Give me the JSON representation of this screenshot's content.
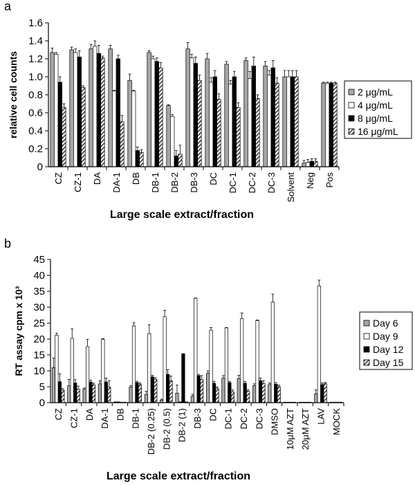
{
  "chart_data": [
    {
      "panel": "a",
      "type": "bar",
      "xlabel": "Large scale extract/fraction",
      "ylabel": "relative cell counts",
      "ylim": [
        0,
        1.6
      ],
      "yticks": [
        "0",
        "0.2",
        "0.4",
        "0.6",
        "0.8",
        "1.0",
        "1.2",
        "1.4",
        "1.6"
      ],
      "categories": [
        "CZ",
        "CZ-1",
        "DA",
        "DA-1",
        "DB",
        "DB-1",
        "DB-2",
        "DB-3",
        "DC",
        "DC-1",
        "DC-2",
        "DC-3",
        "Solvent",
        "Neg",
        "Pos"
      ],
      "legend_placement": "right",
      "series": [
        {
          "name": "2 μg/mL",
          "color": "#a6a6a6",
          "pattern": "solid-gray",
          "values": [
            1.27,
            1.3,
            1.31,
            1.31,
            0.96,
            1.27,
            0.68,
            1.31,
            1.2,
            1.14,
            1.18,
            1.12,
            1.0,
            0.04,
            0.93
          ],
          "errors": [
            0.05,
            0.03,
            0.05,
            0.04,
            0.07,
            0.02,
            0.01,
            0.07,
            0.06,
            0.03,
            0.03,
            0.05,
            0.07,
            0.03,
            0.01
          ]
        },
        {
          "name": "4 μg/mL",
          "color": "#ffffff",
          "pattern": "white",
          "values": [
            1.25,
            1.27,
            1.34,
            0.84,
            0.84,
            1.2,
            0.56,
            1.21,
            0.94,
            0.92,
            0.98,
            1.02,
            1.0,
            0.05,
            0.93
          ],
          "errors": [
            0.02,
            0.04,
            0.06,
            0.01,
            0.01,
            0.03,
            0.02,
            0.04,
            0.05,
            0.04,
            0.08,
            0.05,
            0.07,
            0.03,
            0.01
          ]
        },
        {
          "name": "8 μg/mL",
          "color": "#000000",
          "pattern": "black",
          "values": [
            0.94,
            1.22,
            1.26,
            1.2,
            0.18,
            1.17,
            0.12,
            1.15,
            1.0,
            1.0,
            1.12,
            1.1,
            1.0,
            0.06,
            0.93
          ],
          "errors": [
            0.06,
            0.07,
            0.09,
            0.04,
            0.04,
            0.04,
            0.06,
            0.07,
            0.07,
            0.06,
            0.1,
            0.08,
            0.07,
            0.03,
            0.01
          ]
        },
        {
          "name": "16 μg/mL",
          "color": "#808080",
          "pattern": "hatched",
          "values": [
            0.66,
            0.88,
            1.21,
            0.5,
            0.16,
            1.1,
            0.14,
            0.96,
            0.75,
            0.66,
            0.76,
            0.93,
            1.0,
            0.06,
            0.93
          ],
          "errors": [
            0.04,
            0.02,
            0.02,
            0.07,
            0.03,
            0.06,
            0.1,
            0.06,
            0.06,
            0.05,
            0.04,
            0.06,
            0.07,
            0.03,
            0.01
          ]
        }
      ]
    },
    {
      "panel": "b",
      "type": "bar",
      "xlabel": "Large scale extract/fraction",
      "ylabel": "RT assay cpm x 10³",
      "ylim": [
        0,
        45
      ],
      "yticks": [
        "0",
        "5",
        "10",
        "15",
        "20",
        "25",
        "30",
        "35",
        "40",
        "45"
      ],
      "categories": [
        "CZ",
        "CZ-1",
        "DA",
        "DA-1",
        "DB",
        "DB-1",
        "DB-2 (0.25)",
        "DB-2 (0.5)",
        "DB-2 (1)",
        "DB-3",
        "DC",
        "DC-1",
        "DC-2",
        "DC-3",
        "DMSO",
        "10μM AZT",
        "20μM AZT",
        "LAV",
        "MOCK"
      ],
      "legend_placement": "right",
      "series": [
        {
          "name": "Day 6",
          "color": "#a6a6a6",
          "pattern": "solid-gray",
          "values": [
            11.0,
            5.3,
            4.3,
            5.9,
            0.2,
            4.9,
            2.6,
            0.8,
            3.0,
            2.0,
            9.2,
            7.7,
            7.6,
            5.3,
            5.7,
            0.1,
            0.1,
            2.8,
            0.1
          ],
          "errors": [
            3.0,
            2.0,
            0.3,
            1.0,
            0.05,
            0.5,
            1.0,
            0.3,
            2.5,
            0.6,
            0.8,
            0.8,
            1.0,
            0.6,
            0.5,
            0.05,
            0.05,
            1.2,
            0.05
          ]
        },
        {
          "name": "Day 9",
          "color": "#ffffff",
          "pattern": "white",
          "values": [
            21.2,
            20.2,
            17.6,
            19.9,
            0.2,
            24.1,
            21.7,
            27.0,
            0.2,
            32.8,
            22.8,
            23.5,
            26.4,
            25.8,
            31.6,
            0.1,
            0.1,
            36.7,
            0.1
          ],
          "errors": [
            0.6,
            3.0,
            2.3,
            0.2,
            0.05,
            1.0,
            2.8,
            2.0,
            0.05,
            0.1,
            0.8,
            0.1,
            1.8,
            0.2,
            2.5,
            0.05,
            0.05,
            1.8,
            0.05
          ]
        },
        {
          "name": "Day 12",
          "color": "#000000",
          "pattern": "black",
          "values": [
            6.6,
            6.2,
            6.5,
            6.5,
            0.1,
            6.3,
            8.1,
            8.9,
            15.3,
            8.5,
            6.1,
            6.3,
            6.1,
            6.9,
            5.8,
            0.1,
            0.1,
            5.7,
            0.1
          ],
          "errors": [
            2.5,
            1.0,
            0.6,
            1.2,
            0.05,
            0.4,
            0.5,
            1.5,
            0.1,
            0.4,
            0.6,
            0.4,
            0.6,
            0.8,
            0.5,
            0.05,
            0.05,
            0.5,
            0.05
          ]
        },
        {
          "name": "Day 15",
          "color": "#808080",
          "pattern": "hatched",
          "values": [
            3.9,
            4.2,
            5.6,
            4.9,
            0.1,
            5.7,
            7.3,
            6.9,
            0.2,
            7.3,
            4.4,
            3.4,
            3.6,
            6.1,
            5.0,
            0.1,
            0.1,
            6.0,
            0.1
          ],
          "errors": [
            0.5,
            1.0,
            0.5,
            2.0,
            0.05,
            0.5,
            0.5,
            1.5,
            0.05,
            1.2,
            0.5,
            0.6,
            0.5,
            0.8,
            0.5,
            0.05,
            0.05,
            0.4,
            0.05
          ]
        }
      ]
    }
  ]
}
